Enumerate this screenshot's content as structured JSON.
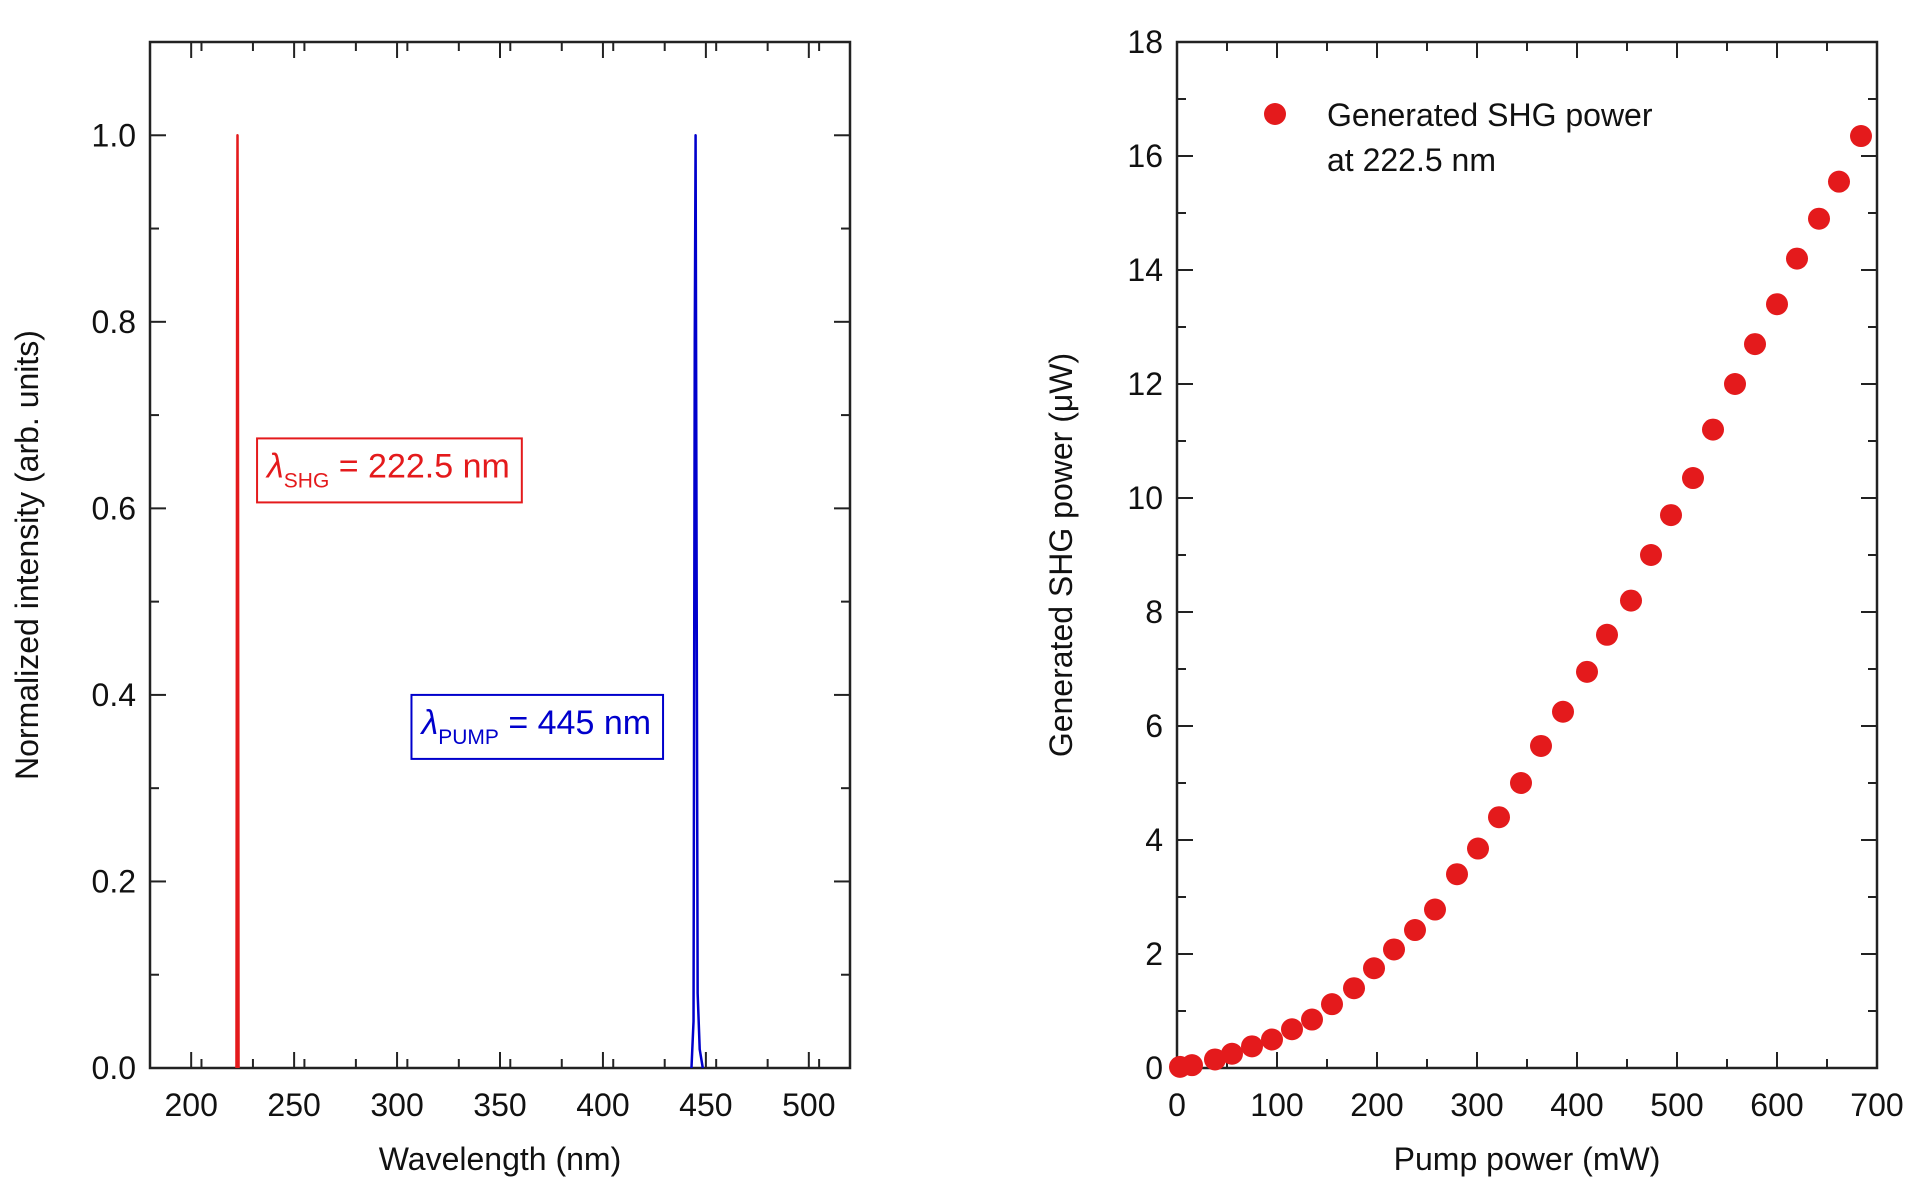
{
  "chart_data": [
    {
      "type": "line",
      "xlabel": "Wavelength (nm)",
      "ylabel": "Normalized intensity (arb. units)",
      "xlim": [
        180,
        520
      ],
      "ylim": [
        0.0,
        1.1
      ],
      "xticks": [
        "200",
        "250",
        "300",
        "350",
        "400",
        "450",
        "500"
      ],
      "xtick_values": [
        200,
        250,
        300,
        350,
        400,
        450,
        500
      ],
      "yticks": [
        "0.0",
        "0.2",
        "0.4",
        "0.6",
        "0.8",
        "1.0"
      ],
      "ytick_values": [
        0.0,
        0.2,
        0.4,
        0.6,
        0.8,
        1.0
      ],
      "grid": false,
      "series": [
        {
          "color": "#e41a1c",
          "x": [
            222.0,
            222.3,
            222.5,
            222.7,
            223.0
          ],
          "y": [
            0.0,
            0.8,
            1.0,
            0.8,
            0.0
          ]
        },
        {
          "color": "#0000cc",
          "x": [
            443.0,
            444.0,
            444.6,
            445.0,
            445.4,
            446.0,
            447.0,
            448.5
          ],
          "y": [
            0.0,
            0.05,
            0.78,
            1.0,
            0.62,
            0.08,
            0.02,
            0.0
          ]
        }
      ],
      "annotations": [
        {
          "symbol": "λ",
          "subscript": "SHG",
          "text": "= 222.5 nm",
          "color": "#e41a1c",
          "anchor_x": 232,
          "anchor_y": 0.675
        },
        {
          "symbol": "λ",
          "subscript": "PUMP",
          "text": "= 445 nm",
          "color": "#0000cc",
          "anchor_x": 307,
          "anchor_y": 0.4
        }
      ]
    },
    {
      "type": "scatter",
      "xlabel": "Pump power (mW)",
      "ylabel": "Generated SHG power (μW)",
      "xlim": [
        0,
        700
      ],
      "ylim": [
        0,
        18
      ],
      "xticks": [
        "0",
        "100",
        "200",
        "300",
        "400",
        "500",
        "600",
        "700"
      ],
      "xtick_values": [
        0,
        100,
        200,
        300,
        400,
        500,
        600,
        700
      ],
      "yticks": [
        "0",
        "2",
        "4",
        "6",
        "8",
        "10",
        "12",
        "14",
        "16",
        "18"
      ],
      "ytick_values": [
        0,
        2,
        4,
        6,
        8,
        10,
        12,
        14,
        16,
        18
      ],
      "grid": false,
      "legend_position": "top-left",
      "series": [
        {
          "name": "Generated SHG power at 222.5 nm",
          "legend_lines": [
            "Generated SHG power",
            "at 222.5 nm"
          ],
          "color": "#e41a1c",
          "x": [
            3,
            15,
            38,
            55,
            75,
            95,
            115,
            135,
            155,
            177,
            197,
            217,
            238,
            258,
            280,
            301,
            322,
            344,
            364,
            386,
            410,
            430,
            454,
            474,
            494,
            516,
            536,
            558,
            578,
            600,
            620,
            642,
            662,
            684
          ],
          "y": [
            0.02,
            0.05,
            0.15,
            0.25,
            0.38,
            0.5,
            0.68,
            0.85,
            1.12,
            1.4,
            1.75,
            2.08,
            2.42,
            2.78,
            3.4,
            3.85,
            4.4,
            5.0,
            5.65,
            6.25,
            6.95,
            7.6,
            8.2,
            9.0,
            9.7,
            10.35,
            11.2,
            12.0,
            12.7,
            13.4,
            14.2,
            14.9,
            15.55,
            16.35
          ]
        }
      ]
    }
  ]
}
